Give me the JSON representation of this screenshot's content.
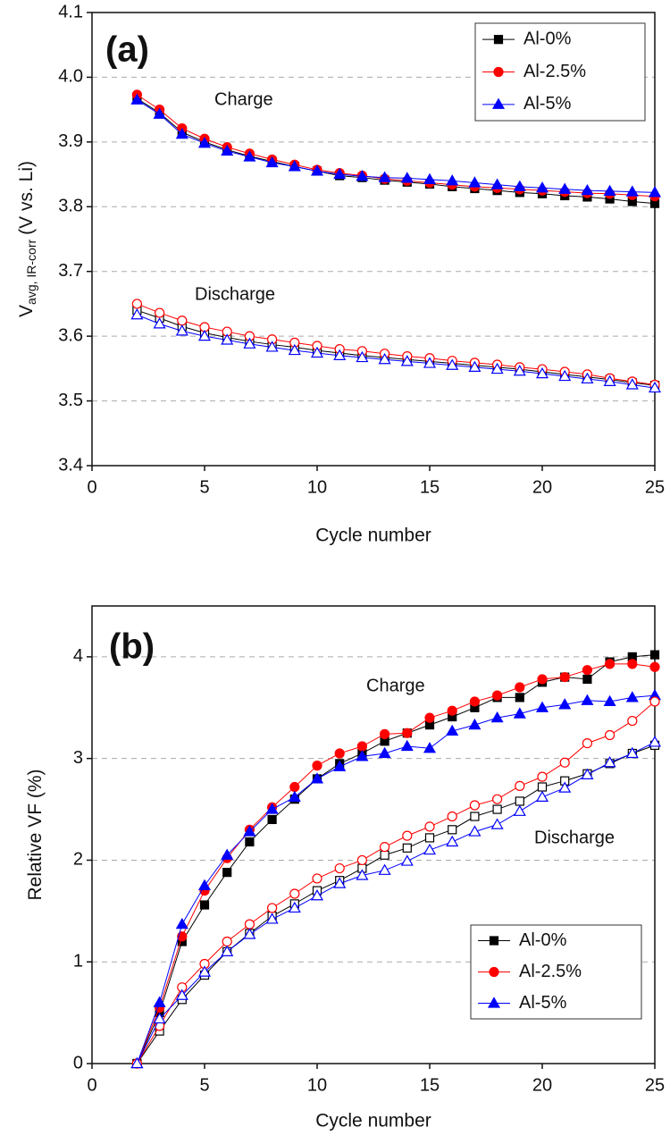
{
  "chart_data": [
    {
      "type": "line",
      "panel_label": "(a)",
      "xlabel": "Cycle number",
      "ylabel": "V",
      "ylabel_sub": "avg, IR-corr",
      "ylabel_suffix": "(V vs. Li)",
      "annotations": [
        "Charge",
        "Discharge"
      ],
      "xlim": [
        0,
        25
      ],
      "xticks": [
        0,
        5,
        10,
        15,
        20,
        25
      ],
      "ylim": [
        3.4,
        4.1
      ],
      "yticks": [
        3.4,
        3.5,
        3.6,
        3.7,
        3.8,
        3.9,
        {
          "value": 4,
          "label": "4.0"
        },
        4.1
      ],
      "grid": true,
      "legend": "upper right",
      "x": [
        2,
        3,
        4,
        5,
        6,
        7,
        8,
        9,
        10,
        11,
        12,
        13,
        14,
        15,
        16,
        17,
        18,
        19,
        20,
        21,
        22,
        23,
        24,
        25
      ],
      "series": [
        {
          "name": "Al-0%",
          "color": "#000000",
          "marker": "square",
          "filled": true,
          "values": [
            3.967,
            3.945,
            3.915,
            3.9,
            3.888,
            3.878,
            3.87,
            3.862,
            3.855,
            3.848,
            3.845,
            3.841,
            3.838,
            3.835,
            3.831,
            3.828,
            3.825,
            3.822,
            3.82,
            3.817,
            3.815,
            3.812,
            3.808,
            3.805
          ]
        },
        {
          "name": "Al-2.5%",
          "color": "#ff0000",
          "marker": "circle",
          "filled": true,
          "values": [
            3.973,
            3.95,
            3.921,
            3.905,
            3.892,
            3.882,
            3.873,
            3.865,
            3.857,
            3.852,
            3.848,
            3.843,
            3.84,
            3.837,
            3.834,
            3.831,
            3.829,
            3.827,
            3.825,
            3.823,
            3.821,
            3.82,
            3.818,
            3.816
          ]
        },
        {
          "name": "Al-5%",
          "color": "#0000ff",
          "marker": "triangle",
          "filled": true,
          "values": [
            3.965,
            3.943,
            3.912,
            3.898,
            3.886,
            3.877,
            3.868,
            3.862,
            3.855,
            3.85,
            3.847,
            3.845,
            3.844,
            3.842,
            3.84,
            3.837,
            3.834,
            3.831,
            3.829,
            3.827,
            3.825,
            3.824,
            3.823,
            3.822
          ]
        },
        {
          "color": "#000000",
          "marker": "square",
          "filled": false,
          "values": [
            3.64,
            3.628,
            3.615,
            3.605,
            3.598,
            3.592,
            3.587,
            3.583,
            3.578,
            3.574,
            3.57,
            3.567,
            3.564,
            3.561,
            3.558,
            3.555,
            3.552,
            3.549,
            3.545,
            3.541,
            3.537,
            3.533,
            3.528,
            3.524
          ]
        },
        {
          "color": "#ff0000",
          "marker": "circle",
          "filled": false,
          "values": [
            3.65,
            3.636,
            3.624,
            3.614,
            3.607,
            3.6,
            3.595,
            3.59,
            3.585,
            3.58,
            3.577,
            3.573,
            3.569,
            3.566,
            3.562,
            3.559,
            3.556,
            3.552,
            3.549,
            3.545,
            3.541,
            3.535,
            3.53,
            3.525
          ]
        },
        {
          "color": "#0000ff",
          "marker": "triangle",
          "filled": false,
          "values": [
            3.633,
            3.619,
            3.608,
            3.6,
            3.594,
            3.588,
            3.583,
            3.578,
            3.574,
            3.57,
            3.567,
            3.564,
            3.561,
            3.558,
            3.555,
            3.552,
            3.549,
            3.546,
            3.542,
            3.538,
            3.534,
            3.53,
            3.525,
            3.52
          ]
        }
      ]
    },
    {
      "type": "line",
      "panel_label": "(b)",
      "xlabel": "Cycle number",
      "ylabel": "Relative VF (%)",
      "annotations": [
        "Charge",
        "Discharge"
      ],
      "xlim": [
        0,
        25
      ],
      "xticks": [
        0,
        5,
        10,
        15,
        20,
        25
      ],
      "ylim": [
        0,
        4.5
      ],
      "yticks": [
        0,
        1,
        2,
        3,
        4
      ],
      "grid": true,
      "legend": "lower right",
      "x": [
        2,
        3,
        4,
        5,
        6,
        7,
        8,
        9,
        10,
        11,
        12,
        13,
        14,
        15,
        16,
        17,
        18,
        19,
        20,
        21,
        22,
        23,
        24,
        25
      ],
      "series": [
        {
          "name": "Al-0%",
          "color": "#000000",
          "marker": "square",
          "filled": true,
          "values": [
            0,
            0.5,
            1.2,
            1.56,
            1.88,
            2.18,
            2.4,
            2.6,
            2.8,
            2.95,
            3.05,
            3.17,
            3.25,
            3.33,
            3.41,
            3.5,
            3.6,
            3.6,
            3.75,
            3.8,
            3.78,
            3.95,
            4.0,
            4.02
          ]
        },
        {
          "name": "Al-2.5%",
          "color": "#ff0000",
          "marker": "circle",
          "filled": true,
          "values": [
            0,
            0.55,
            1.25,
            1.7,
            2.02,
            2.3,
            2.52,
            2.72,
            2.93,
            3.05,
            3.12,
            3.24,
            3.25,
            3.4,
            3.47,
            3.56,
            3.62,
            3.7,
            3.78,
            3.8,
            3.87,
            3.93,
            3.93,
            3.9
          ]
        },
        {
          "name": "Al-5%",
          "color": "#0000ff",
          "marker": "triangle",
          "filled": true,
          "values": [
            0,
            0.6,
            1.37,
            1.75,
            2.05,
            2.28,
            2.5,
            2.62,
            2.8,
            2.92,
            3.02,
            3.05,
            3.12,
            3.1,
            3.27,
            3.33,
            3.4,
            3.44,
            3.5,
            3.53,
            3.57,
            3.56,
            3.6,
            3.62
          ]
        },
        {
          "color": "#000000",
          "marker": "square",
          "filled": false,
          "values": [
            0,
            0.32,
            0.63,
            0.87,
            1.1,
            1.28,
            1.45,
            1.57,
            1.7,
            1.8,
            1.92,
            2.05,
            2.12,
            2.22,
            2.3,
            2.43,
            2.5,
            2.58,
            2.72,
            2.78,
            2.85,
            2.95,
            3.05,
            3.13
          ]
        },
        {
          "color": "#ff0000",
          "marker": "circle",
          "filled": false,
          "values": [
            0,
            0.37,
            0.75,
            0.98,
            1.2,
            1.37,
            1.53,
            1.67,
            1.82,
            1.92,
            2.0,
            2.13,
            2.24,
            2.33,
            2.43,
            2.54,
            2.6,
            2.73,
            2.82,
            2.96,
            3.15,
            3.23,
            3.37,
            3.56
          ]
        },
        {
          "color": "#0000ff",
          "marker": "triangle",
          "filled": false,
          "values": [
            0,
            0.44,
            0.67,
            0.9,
            1.1,
            1.27,
            1.42,
            1.53,
            1.65,
            1.77,
            1.85,
            1.9,
            1.99,
            2.1,
            2.18,
            2.28,
            2.35,
            2.48,
            2.62,
            2.71,
            2.84,
            2.96,
            3.05,
            3.16
          ]
        }
      ]
    }
  ]
}
